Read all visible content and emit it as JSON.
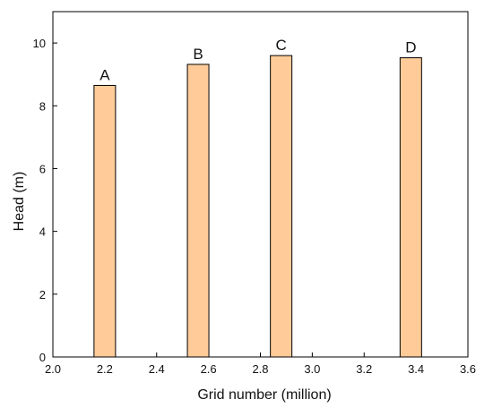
{
  "chart_data": {
    "type": "bar",
    "title": "",
    "xlabel": "Grid number (million)",
    "ylabel": "Head (m)",
    "xlim": [
      2.0,
      3.6
    ],
    "ylim": [
      0,
      11
    ],
    "x_ticks": [
      "2.0",
      "2.2",
      "2.4",
      "2.6",
      "2.8",
      "3.0",
      "3.2",
      "3.4",
      "3.6"
    ],
    "y_ticks": [
      "0",
      "2",
      "4",
      "6",
      "8",
      "10"
    ],
    "bars": [
      {
        "label": "A",
        "x": 2.2,
        "value": 8.65
      },
      {
        "label": "B",
        "x": 2.56,
        "value": 9.32
      },
      {
        "label": "C",
        "x": 2.88,
        "value": 9.6
      },
      {
        "label": "D",
        "x": 3.38,
        "value": 9.53
      }
    ],
    "bar_color": "#FFCC99",
    "bar_edge_color": "#000000",
    "grid": false,
    "legend": "none"
  }
}
